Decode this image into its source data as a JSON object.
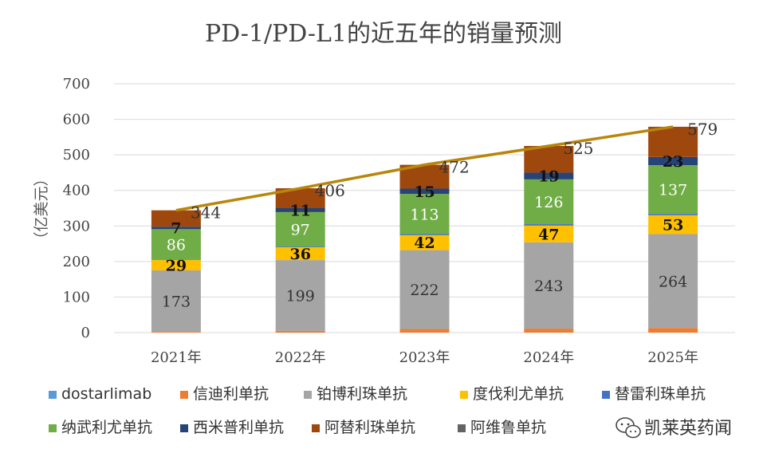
{
  "chart_data": {
    "type": "bar",
    "stacked": true,
    "title": "PD-1/PD-L1的近五年的销量预测",
    "xlabel": "",
    "ylabel": "（亿美元）",
    "ylim": [
      0,
      700
    ],
    "yticks": [
      0,
      100,
      200,
      300,
      400,
      500,
      600,
      700
    ],
    "grid": true,
    "legend_position": "bottom",
    "categories": [
      "2021年",
      "2022年",
      "2023年",
      "2024年",
      "2025年"
    ],
    "series": [
      {
        "name": "dostarlimab",
        "color": "#5b9bd5",
        "values": [
          0,
          0,
          0,
          0,
          0
        ],
        "labels": [
          "",
          "",
          "",
          "",
          ""
        ]
      },
      {
        "name": "信迪利单抗",
        "color": "#ed7d31",
        "values": [
          2,
          5,
          10,
          11,
          13
        ],
        "labels": [
          "",
          "",
          "",
          "",
          ""
        ]
      },
      {
        "name": "铂博利珠单抗",
        "color": "#a5a5a5",
        "values": [
          173,
          199,
          222,
          243,
          264
        ],
        "labels": [
          "173",
          "199",
          "222",
          "243",
          "264"
        ]
      },
      {
        "name": "度伐利尤单抗",
        "color": "#ffc000",
        "values": [
          29,
          36,
          42,
          47,
          53
        ],
        "labels": [
          "29",
          "36",
          "42",
          "47",
          "53"
        ]
      },
      {
        "name": "替雷利珠单抗",
        "color": "#4472c4",
        "values": [
          1,
          2,
          3,
          4,
          4
        ],
        "labels": [
          "",
          "",
          "",
          "",
          ""
        ]
      },
      {
        "name": "纳武利尤单抗",
        "color": "#70ad47",
        "values": [
          86,
          97,
          113,
          126,
          137
        ],
        "labels": [
          "86",
          "97",
          "113",
          "126",
          "137"
        ]
      },
      {
        "name": "西米普利单抗",
        "color": "#264478",
        "values": [
          7,
          11,
          15,
          19,
          23
        ],
        "labels": [
          "7",
          "11",
          "15",
          "19",
          "23"
        ]
      },
      {
        "name": "阿替利珠单抗",
        "color": "#9e480e",
        "values": [
          46,
          56,
          67,
          75,
          85
        ],
        "labels": [
          "",
          "",
          "",
          "",
          ""
        ]
      },
      {
        "name": "阿维鲁单抗",
        "color": "#636363",
        "values": [
          0,
          0,
          0,
          0,
          0
        ],
        "labels": [
          "",
          "",
          "",
          "",
          ""
        ]
      }
    ],
    "totals": {
      "values": [
        344,
        406,
        472,
        525,
        579
      ],
      "labels": [
        "344",
        "406",
        "472",
        "525",
        "579"
      ],
      "line_color": "#b8860b"
    }
  },
  "watermark": {
    "text": "凯莱英药闻",
    "icon": "wechat-icon"
  }
}
